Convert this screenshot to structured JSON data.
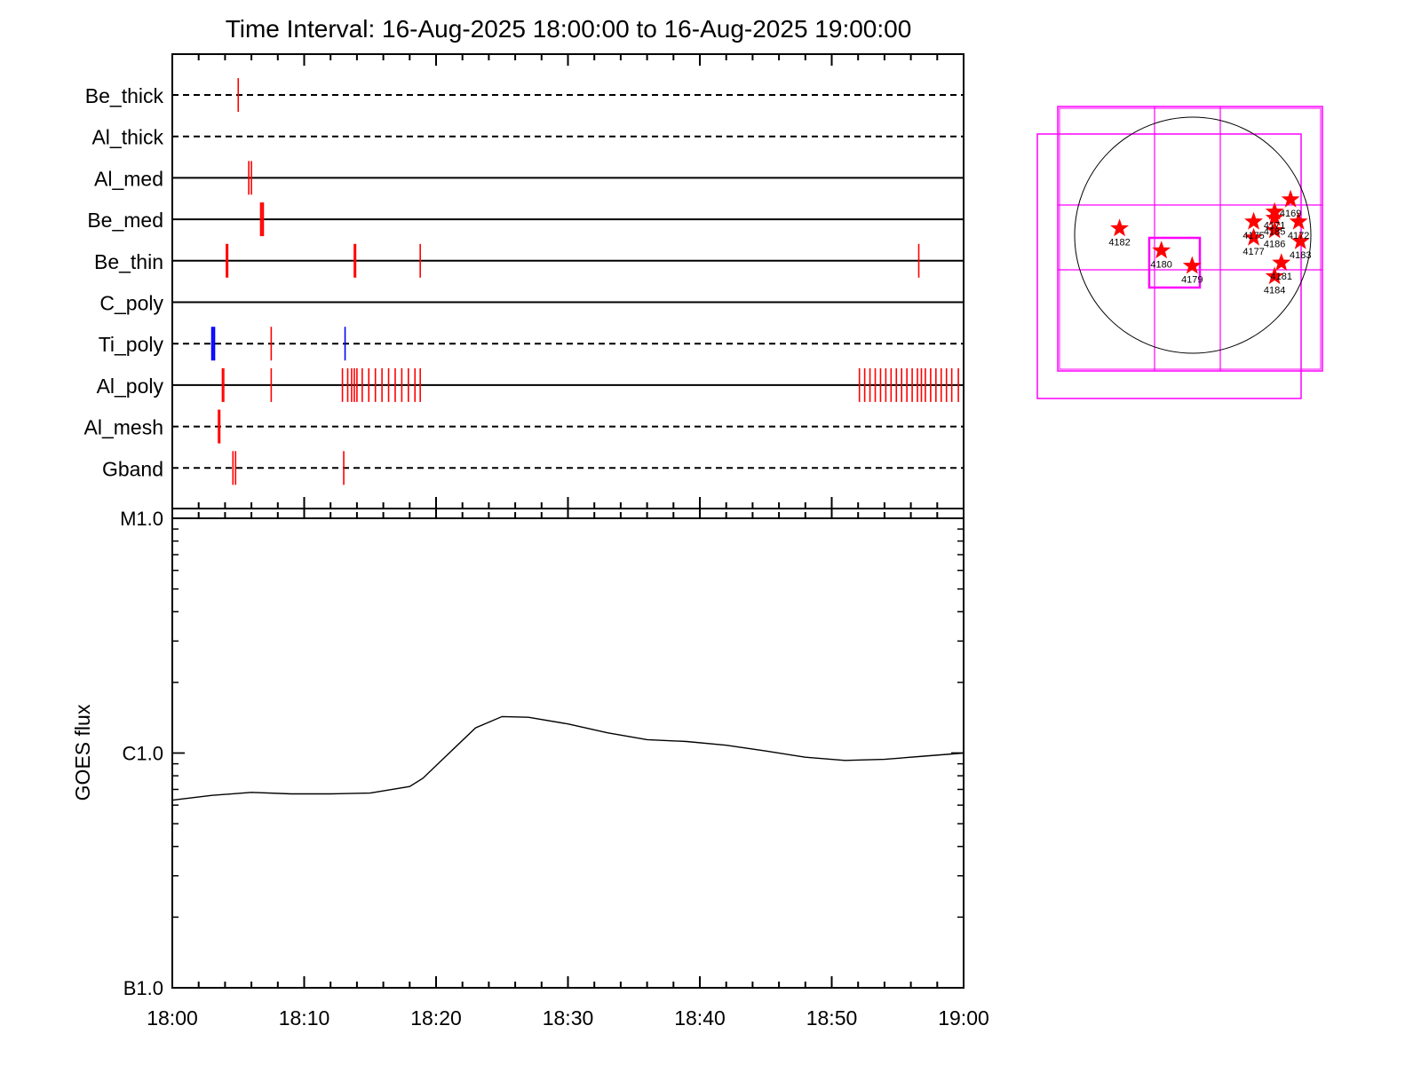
{
  "chart_data": [
    {
      "type": "timeline",
      "title": "Time Interval: 16-Aug-2025 18:00:00 to 16-Aug-2025 19:00:00",
      "xlim_minutes": [
        0,
        60
      ],
      "rows": [
        {
          "label": "Be_thick",
          "style": "dashed",
          "events": [
            {
              "t": 5.0,
              "color": "#ff0000"
            }
          ]
        },
        {
          "label": "Al_thick",
          "style": "dashed",
          "events": []
        },
        {
          "label": "Al_med",
          "style": "solid",
          "events": [
            {
              "t": 5.8,
              "color": "#ff0000"
            },
            {
              "t": 6.0,
              "color": "#ff0000"
            }
          ]
        },
        {
          "label": "Be_med",
          "style": "solid",
          "events": [
            {
              "t": 6.7,
              "color": "#ff0000"
            },
            {
              "t": 6.8,
              "color": "#ff0000"
            },
            {
              "t": 6.9,
              "color": "#ff0000"
            }
          ]
        },
        {
          "label": "Be_thin",
          "style": "solid",
          "events": [
            {
              "t": 4.1,
              "color": "#ff0000"
            },
            {
              "t": 4.2,
              "color": "#ff0000"
            },
            {
              "t": 13.8,
              "color": "#ff0000"
            },
            {
              "t": 13.9,
              "color": "#ff0000"
            },
            {
              "t": 18.8,
              "color": "#ff0000"
            },
            {
              "t": 56.6,
              "color": "#ff0000"
            }
          ]
        },
        {
          "label": "C_poly",
          "style": "solid",
          "events": []
        },
        {
          "label": "Ti_poly",
          "style": "dashed",
          "events": [
            {
              "t": 3.0,
              "color": "#0000ff"
            },
            {
              "t": 3.1,
              "color": "#0000ff"
            },
            {
              "t": 3.2,
              "color": "#0000ff"
            },
            {
              "t": 7.5,
              "color": "#ff0000"
            },
            {
              "t": 13.1,
              "color": "#0000ff"
            }
          ]
        },
        {
          "label": "Al_poly",
          "style": "solid",
          "events": [
            {
              "t": 3.8,
              "color": "#ff0000"
            },
            {
              "t": 3.9,
              "color": "#ff0000"
            },
            {
              "t": 7.5,
              "color": "#ff0000"
            },
            {
              "t": 12.9,
              "color": "#ff0000"
            },
            {
              "t": 13.3,
              "color": "#ff0000"
            },
            {
              "t": 13.6,
              "color": "#ff0000"
            },
            {
              "t": 13.8,
              "color": "#ff0000"
            },
            {
              "t": 14.0,
              "color": "#ff0000"
            },
            {
              "t": 14.4,
              "color": "#ff0000"
            },
            {
              "t": 14.9,
              "color": "#ff0000"
            },
            {
              "t": 15.4,
              "color": "#ff0000"
            },
            {
              "t": 15.9,
              "color": "#ff0000"
            },
            {
              "t": 16.4,
              "color": "#ff0000"
            },
            {
              "t": 16.9,
              "color": "#ff0000"
            },
            {
              "t": 17.4,
              "color": "#ff0000"
            },
            {
              "t": 17.9,
              "color": "#ff0000"
            },
            {
              "t": 18.4,
              "color": "#ff0000"
            },
            {
              "t": 18.8,
              "color": "#ff0000"
            },
            {
              "t": 52.1,
              "color": "#ff0000"
            },
            {
              "t": 52.5,
              "color": "#ff0000"
            },
            {
              "t": 52.9,
              "color": "#ff0000"
            },
            {
              "t": 53.3,
              "color": "#ff0000"
            },
            {
              "t": 53.7,
              "color": "#ff0000"
            },
            {
              "t": 54.1,
              "color": "#ff0000"
            },
            {
              "t": 54.5,
              "color": "#ff0000"
            },
            {
              "t": 54.9,
              "color": "#ff0000"
            },
            {
              "t": 55.3,
              "color": "#ff0000"
            },
            {
              "t": 55.7,
              "color": "#ff0000"
            },
            {
              "t": 56.1,
              "color": "#ff0000"
            },
            {
              "t": 56.5,
              "color": "#ff0000"
            },
            {
              "t": 56.8,
              "color": "#ff0000"
            },
            {
              "t": 57.1,
              "color": "#ff0000"
            },
            {
              "t": 57.5,
              "color": "#ff0000"
            },
            {
              "t": 57.9,
              "color": "#ff0000"
            },
            {
              "t": 58.3,
              "color": "#ff0000"
            },
            {
              "t": 58.7,
              "color": "#ff0000"
            },
            {
              "t": 59.1,
              "color": "#ff0000"
            },
            {
              "t": 59.6,
              "color": "#ff0000"
            }
          ]
        },
        {
          "label": "Al_mesh",
          "style": "dashed",
          "events": [
            {
              "t": 3.5,
              "color": "#ff0000"
            },
            {
              "t": 3.6,
              "color": "#ff0000"
            }
          ]
        },
        {
          "label": "Gband",
          "style": "dashed",
          "events": [
            {
              "t": 4.6,
              "color": "#ff0000"
            },
            {
              "t": 4.8,
              "color": "#ff0000"
            },
            {
              "t": 13.0,
              "color": "#ff0000"
            }
          ]
        }
      ]
    },
    {
      "type": "line",
      "ylabel": "GOES flux",
      "yscale": "log",
      "ylim": [
        1e-07,
        1e-05
      ],
      "y_tick_labels": [
        {
          "value": 1e-05,
          "label": "M1.0"
        },
        {
          "value": 1e-06,
          "label": "C1.0"
        },
        {
          "value": 1e-07,
          "label": "B1.0"
        }
      ],
      "x_tick_labels": [
        "18:00",
        "18:10",
        "18:20",
        "18:30",
        "18:40",
        "18:50",
        "19:00"
      ],
      "x_tick_minutes": [
        0,
        10,
        20,
        30,
        40,
        50,
        60
      ],
      "series": [
        {
          "color": "#000000",
          "x": [
            0,
            3,
            6,
            9,
            12,
            15,
            18,
            19,
            21,
            23,
            25,
            27,
            30,
            33,
            36,
            39,
            42,
            45,
            48,
            51,
            54,
            57,
            60
          ],
          "y": [
            6.3e-07,
            6.6e-07,
            6.8e-07,
            6.7e-07,
            6.7e-07,
            6.75e-07,
            7.2e-07,
            7.8e-07,
            1e-06,
            1.28e-06,
            1.43e-06,
            1.42e-06,
            1.33e-06,
            1.22e-06,
            1.14e-06,
            1.12e-06,
            1.08e-06,
            1.02e-06,
            9.6e-07,
            9.3e-07,
            9.4e-07,
            9.7e-07,
            1e-06
          ]
        }
      ]
    },
    {
      "type": "scatter",
      "description": "solar disk map with active region markers",
      "points": [
        {
          "id": "4182",
          "x": -595,
          "y": 55
        },
        {
          "id": "4180",
          "x": -255,
          "y": -125
        },
        {
          "id": "4179",
          "x": -5,
          "y": -250
        },
        {
          "id": "4175",
          "x": 495,
          "y": 110
        },
        {
          "id": "4177",
          "x": 495,
          "y": -20
        },
        {
          "id": "4171",
          "x": 665,
          "y": 190
        },
        {
          "id": "4185",
          "x": 665,
          "y": 140
        },
        {
          "id": "4169",
          "x": 795,
          "y": 290
        },
        {
          "id": "4186",
          "x": 665,
          "y": 40
        },
        {
          "id": "4172",
          "x": 860,
          "y": 110
        },
        {
          "id": "4183",
          "x": 875,
          "y": -50
        },
        {
          "id": "4181",
          "x": 720,
          "y": -225
        },
        {
          "id": "4184",
          "x": 665,
          "y": -335
        }
      ]
    }
  ],
  "colors": {
    "event_red": "#ff0000",
    "event_blue": "#0000ff",
    "fov_magenta": "#ff00ff",
    "axis": "#000000"
  }
}
